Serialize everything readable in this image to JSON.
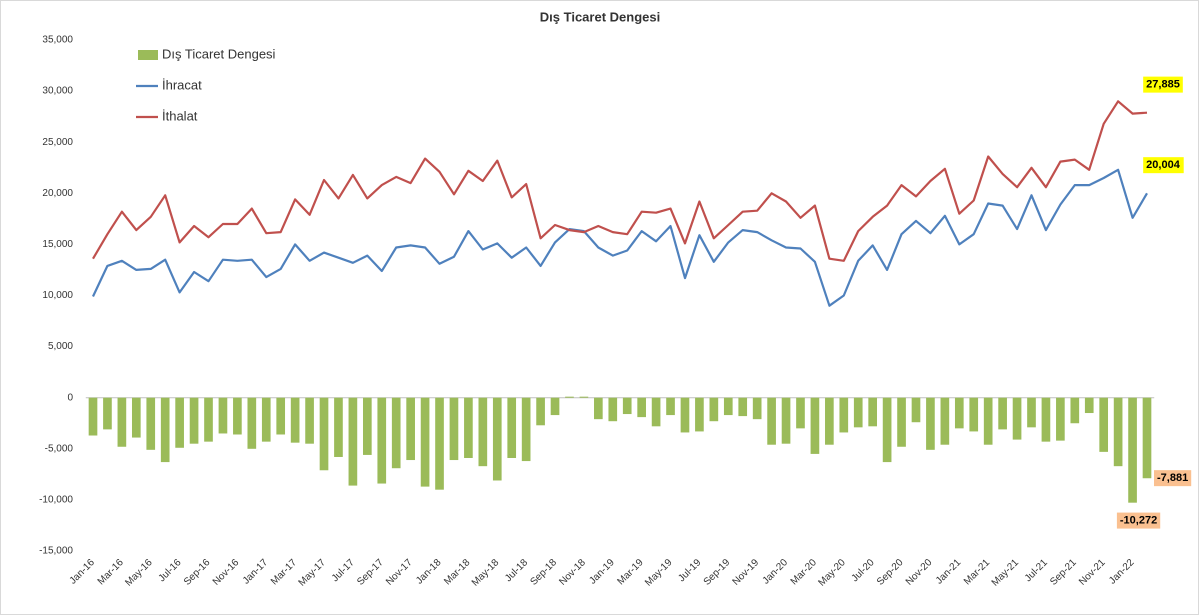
{
  "chart_data": {
    "type": "combo",
    "title": "Dış Ticaret Dengesi",
    "categories": [
      "Jan-16",
      null,
      "Mar-16",
      null,
      "May-16",
      null,
      "Jul-16",
      null,
      "Sep-16",
      null,
      "Nov-16",
      null,
      "Jan-17",
      null,
      "Mar-17",
      null,
      "May-17",
      null,
      "Jul-17",
      null,
      "Sep-17",
      null,
      "Nov-17",
      null,
      "Jan-18",
      null,
      "Mar-18",
      null,
      "May-18",
      null,
      "Jul-18",
      null,
      "Sep-18",
      null,
      "Nov-18",
      null,
      "Jan-19",
      null,
      "Mar-19",
      null,
      "May-19",
      null,
      "Jul-19",
      null,
      "Sep-19",
      null,
      "Nov-19",
      null,
      "Jan-20",
      null,
      "Mar-20",
      null,
      "May-20",
      null,
      "Jul-20",
      null,
      "Sep-20",
      null,
      "Nov-20",
      null,
      "Jan-21",
      null,
      "Mar-21",
      null,
      "May-21",
      null,
      "Jul-21",
      null,
      "Sep-21",
      null,
      "Nov-21",
      null,
      "Jan-22",
      null
    ],
    "series": [
      {
        "name": "Dış Ticaret Dengesi",
        "type": "bar",
        "color": "#9bbb59",
        "values": [
          -3700,
          -3100,
          -4800,
          -3900,
          -5100,
          -6300,
          -4900,
          -4500,
          -4300,
          -3500,
          -3600,
          -5000,
          -4300,
          -3600,
          -4400,
          -4500,
          -7100,
          -5800,
          -8600,
          -5600,
          -8400,
          -6900,
          -6100,
          -8700,
          -9000,
          -6100,
          -5900,
          -6700,
          -8100,
          -5900,
          -6200,
          -2700,
          -1700,
          100,
          100,
          -2100,
          -2300,
          -1600,
          -1900,
          -2800,
          -1700,
          -3400,
          -3300,
          -2300,
          -1700,
          -1800,
          -2100,
          -4600,
          -4500,
          -3000,
          -5500,
          -4600,
          -3400,
          -2900,
          -2800,
          -6300,
          -4800,
          -2400,
          -5100,
          -4600,
          -3000,
          -3300,
          -4600,
          -3100,
          -4100,
          -2900,
          -4300,
          -4200,
          -2500,
          -1500,
          -5300,
          -6700,
          -10272,
          -7881
        ],
        "value_labels": [
          null,
          null,
          null,
          null,
          null,
          null,
          null,
          null,
          null,
          null,
          null,
          null,
          null,
          null,
          null,
          null,
          null,
          null,
          null,
          null,
          null,
          null,
          null,
          null,
          null,
          null,
          null,
          null,
          null,
          null,
          null,
          null,
          null,
          null,
          null,
          null,
          null,
          null,
          null,
          null,
          null,
          null,
          null,
          null,
          null,
          null,
          null,
          null,
          null,
          null,
          null,
          null,
          null,
          null,
          null,
          null,
          null,
          null,
          null,
          null,
          null,
          null,
          null,
          null,
          null,
          null,
          null,
          null,
          null,
          null,
          null,
          null,
          "-10,272",
          "-7,881"
        ]
      },
      {
        "name": "İhracat",
        "type": "line",
        "color": "#4f81bd",
        "values": [
          9900,
          12900,
          13400,
          12500,
          12600,
          13500,
          10300,
          12300,
          11400,
          13500,
          13400,
          13500,
          11800,
          12600,
          15000,
          13400,
          14200,
          13700,
          13200,
          13900,
          12400,
          14700,
          14900,
          14700,
          13100,
          13800,
          16300,
          14500,
          15100,
          13700,
          14700,
          12900,
          15200,
          16500,
          16300,
          14700,
          13900,
          14400,
          16300,
          15300,
          16800,
          11700,
          15900,
          13300,
          15200,
          16400,
          16200,
          15400,
          14700,
          14600,
          13300,
          9000,
          10000,
          13400,
          14900,
          12500,
          16000,
          17300,
          16100,
          17800,
          15000,
          16000,
          19000,
          18800,
          16500,
          19800,
          16400,
          18900,
          20800,
          20800,
          21500,
          22300,
          17600,
          20004
        ],
        "value_labels": [
          null,
          null,
          null,
          null,
          null,
          null,
          null,
          null,
          null,
          null,
          null,
          null,
          null,
          null,
          null,
          null,
          null,
          null,
          null,
          null,
          null,
          null,
          null,
          null,
          null,
          null,
          null,
          null,
          null,
          null,
          null,
          null,
          null,
          null,
          null,
          null,
          null,
          null,
          null,
          null,
          null,
          null,
          null,
          null,
          null,
          null,
          null,
          null,
          null,
          null,
          null,
          null,
          null,
          null,
          null,
          null,
          null,
          null,
          null,
          null,
          null,
          null,
          null,
          null,
          null,
          null,
          null,
          null,
          null,
          null,
          null,
          null,
          null,
          "20,004"
        ]
      },
      {
        "name": "İthalat",
        "type": "line",
        "color": "#c0504d",
        "values": [
          13600,
          16000,
          18200,
          16400,
          17700,
          19800,
          15200,
          16800,
          15700,
          17000,
          17000,
          18500,
          16100,
          16200,
          19400,
          17900,
          21300,
          19500,
          21800,
          19500,
          20800,
          21600,
          21000,
          23400,
          22100,
          19900,
          22200,
          21200,
          23200,
          19600,
          20900,
          15600,
          16900,
          16400,
          16200,
          16800,
          16200,
          16000,
          18200,
          18100,
          18500,
          15100,
          19200,
          15600,
          16900,
          18200,
          18300,
          20000,
          19200,
          17600,
          18800,
          13600,
          13400,
          16300,
          17700,
          18800,
          20800,
          19700,
          21200,
          22400,
          18000,
          19300,
          23600,
          21900,
          20600,
          22500,
          20600,
          23100,
          23300,
          22300,
          26800,
          29000,
          27800,
          27885
        ],
        "value_labels": [
          null,
          null,
          null,
          null,
          null,
          null,
          null,
          null,
          null,
          null,
          null,
          null,
          null,
          null,
          null,
          null,
          null,
          null,
          null,
          null,
          null,
          null,
          null,
          null,
          null,
          null,
          null,
          null,
          null,
          null,
          null,
          null,
          null,
          null,
          null,
          null,
          null,
          null,
          null,
          null,
          null,
          null,
          null,
          null,
          null,
          null,
          null,
          null,
          null,
          null,
          null,
          null,
          null,
          null,
          null,
          null,
          null,
          null,
          null,
          null,
          null,
          null,
          null,
          null,
          null,
          null,
          null,
          null,
          null,
          null,
          null,
          null,
          null,
          "27,885"
        ]
      }
    ],
    "ylim": [
      -15000,
      35000
    ],
    "yticks": [
      {
        "value": -15000,
        "label": "-15,000"
      },
      {
        "value": -10000,
        "label": "-10,000"
      },
      {
        "value": -5000,
        "label": "-5,000"
      },
      0,
      {
        "value": 5000,
        "label": "5,000"
      },
      {
        "value": 10000,
        "label": "10,000"
      },
      {
        "value": 15000,
        "label": "15,000"
      },
      {
        "value": 20000,
        "label": "20,000"
      },
      {
        "value": 25000,
        "label": "25,000"
      },
      {
        "value": 30000,
        "label": "30,000"
      },
      {
        "value": 35000,
        "label": "35,000"
      }
    ],
    "legend": "top-left",
    "grid": false
  }
}
